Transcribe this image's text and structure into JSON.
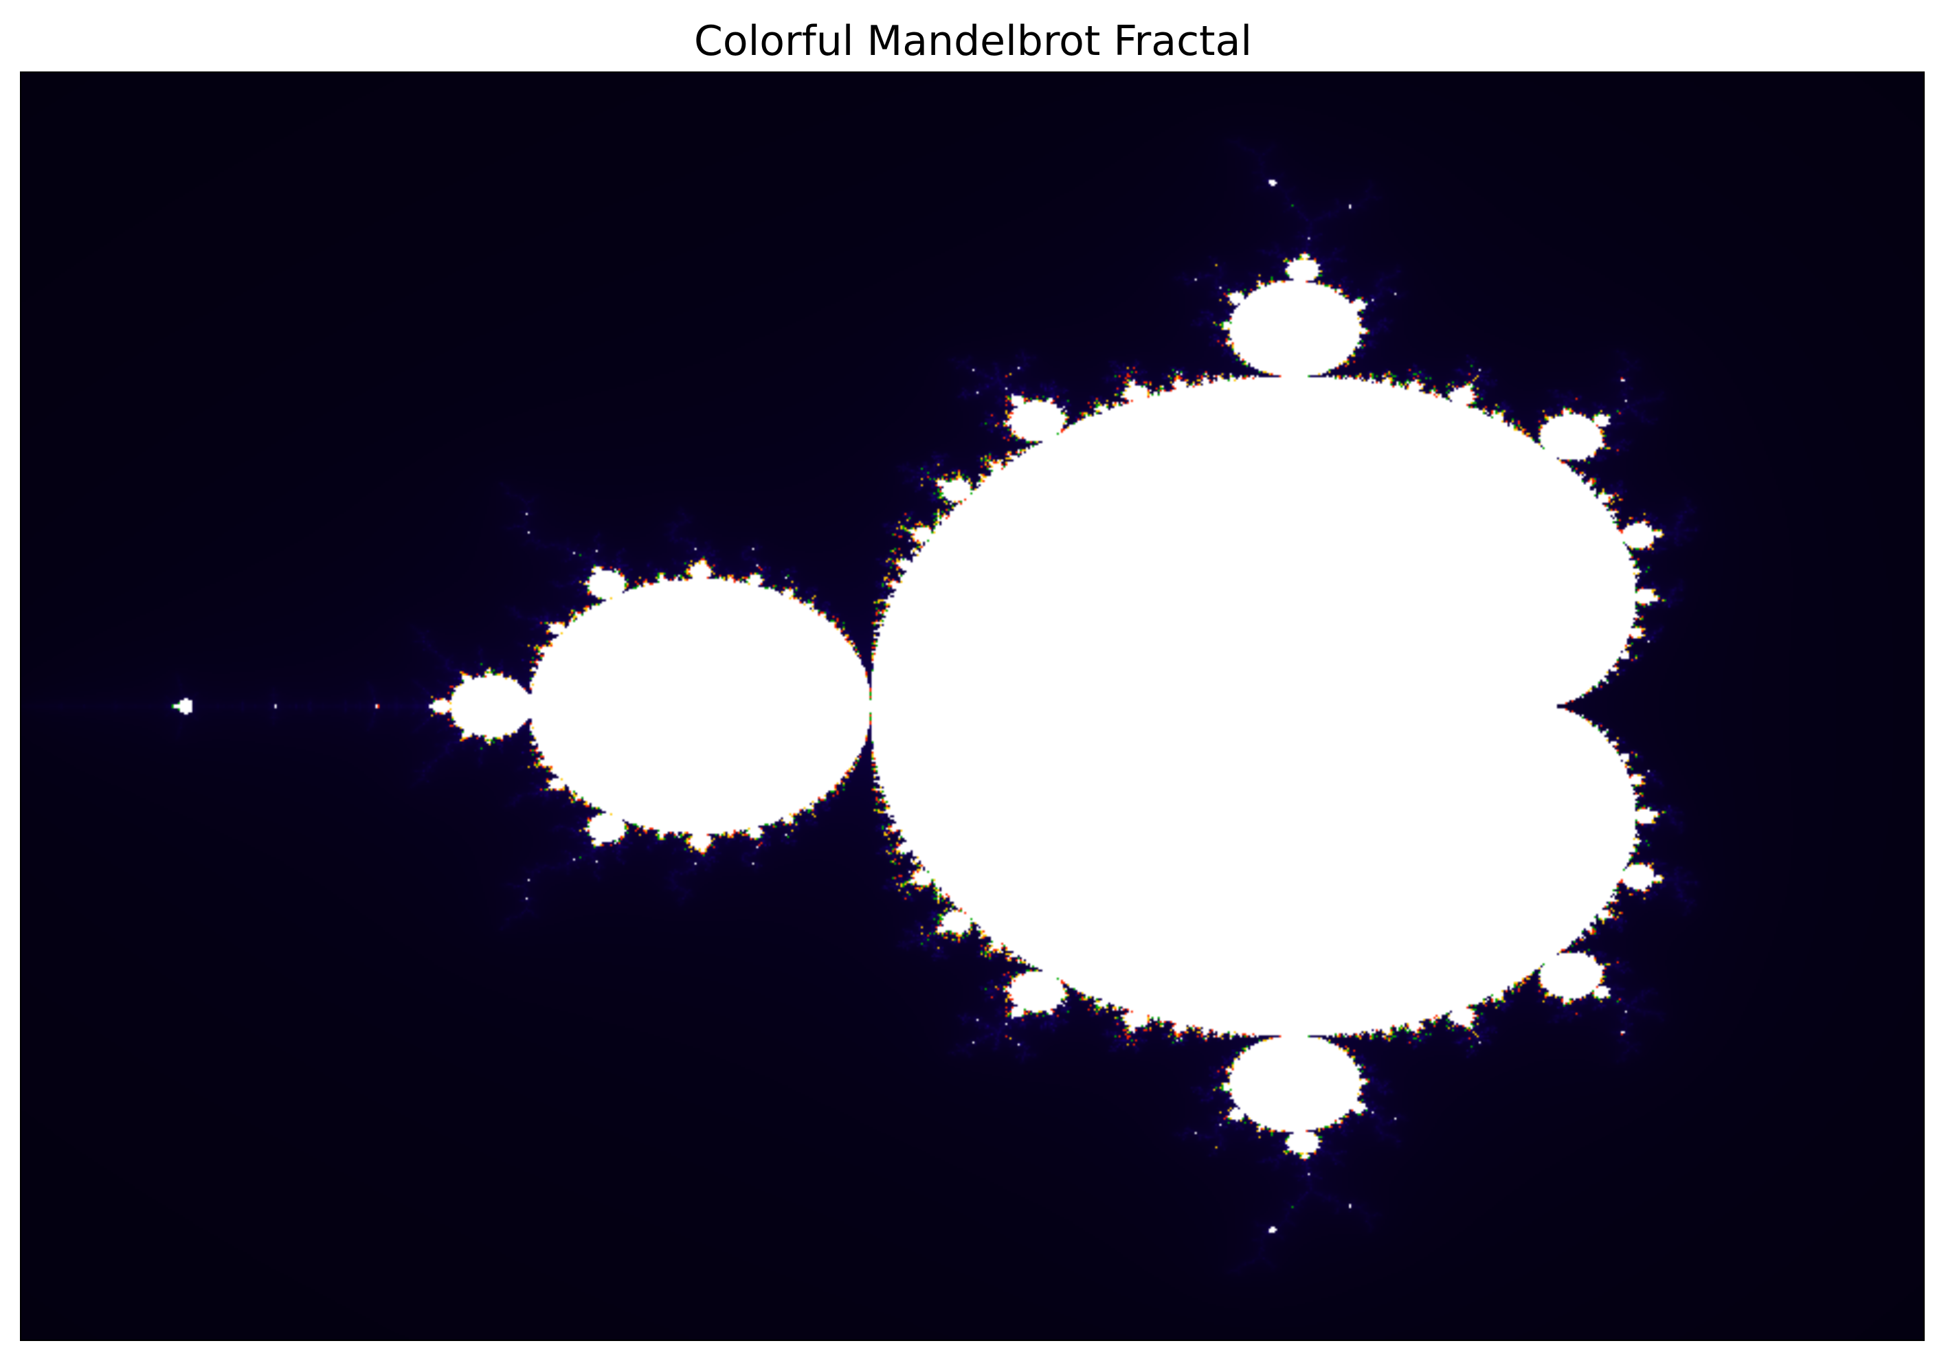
{
  "title": "Colorful Mandelbrot Fractal",
  "fractal": {
    "x_range": [
      -2.0,
      0.8
    ],
    "y_range": [
      -1.25,
      1.25
    ],
    "max_iterations": 256,
    "colors": {
      "interior": "#ffffff",
      "exterior": "#000000",
      "halo": "#1a0066",
      "edge_blue": "#0000ff",
      "edge_accent_red": "#ff0000",
      "edge_accent_green": "#00a000"
    }
  }
}
